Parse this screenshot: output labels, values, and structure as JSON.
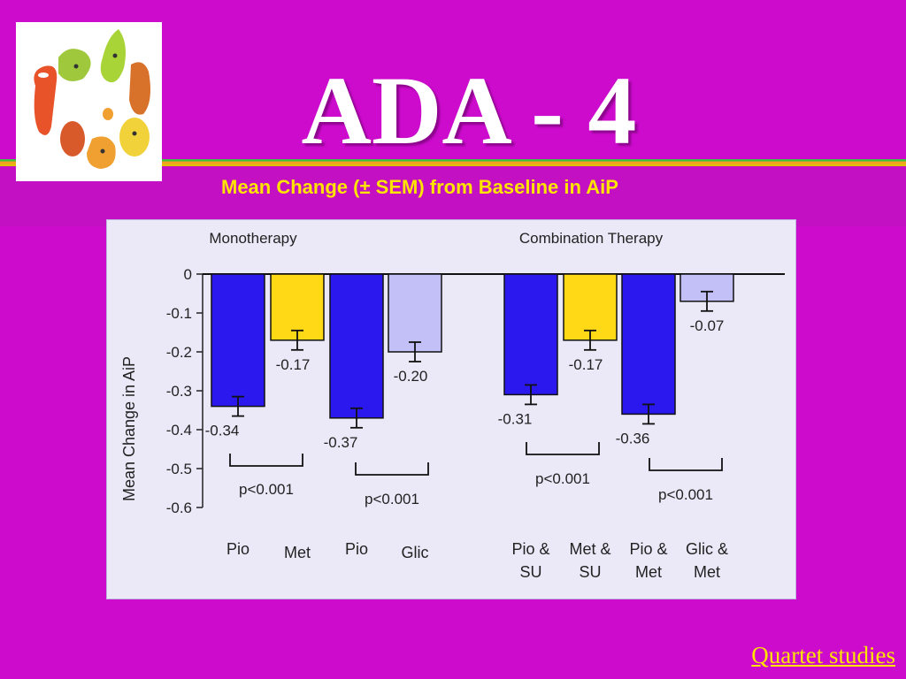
{
  "slide": {
    "title": "ADA - 4",
    "subtitle": "Mean Change (± SEM) from Baseline in AiP",
    "footer": "Quartet studies",
    "logo": {
      "icon": "fruit-vegetable-characters-circle-icon"
    }
  },
  "colors": {
    "background": "#cc0bcc",
    "title": "#ffffff",
    "subtitle": "#ffe400",
    "pio": "#2a18ee",
    "comparator": "#ffd816",
    "glic": "#c2c0f6",
    "panel": "#ebe9f8"
  },
  "chart_data": {
    "type": "bar",
    "ylabel": "Mean Change in AiP",
    "ylim": [
      -0.6,
      0
    ],
    "yticks": [
      "0",
      "-0.1",
      "-0.2",
      "-0.3",
      "-0.4",
      "-0.5",
      "-0.6"
    ],
    "grid": false,
    "groups": [
      {
        "label": "Monotherapy",
        "p_values": [
          "p<0.001",
          "p<0.001"
        ]
      },
      {
        "label": "Combination Therapy",
        "p_values": [
          "p<0.001",
          "p<0.001"
        ]
      }
    ],
    "categories": [
      "Pio",
      "Met",
      "Pio",
      "Glic",
      "Pio & SU",
      "Met & SU",
      "Pio & Met",
      "Glic & Met"
    ],
    "values": [
      -0.34,
      -0.17,
      -0.37,
      -0.2,
      -0.31,
      -0.17,
      -0.36,
      -0.07
    ],
    "value_labels": [
      "-0.34",
      "-0.17",
      "-0.37",
      "-0.20",
      "-0.31",
      "-0.17",
      "-0.36",
      "-0.07"
    ],
    "sem": [
      0.025,
      0.025,
      0.025,
      0.025,
      0.025,
      0.025,
      0.025,
      0.025
    ],
    "bar_colors": [
      "#2a18ee",
      "#ffd816",
      "#2a18ee",
      "#c2c0f6",
      "#2a18ee",
      "#ffd816",
      "#2a18ee",
      "#c2c0f6"
    ]
  }
}
